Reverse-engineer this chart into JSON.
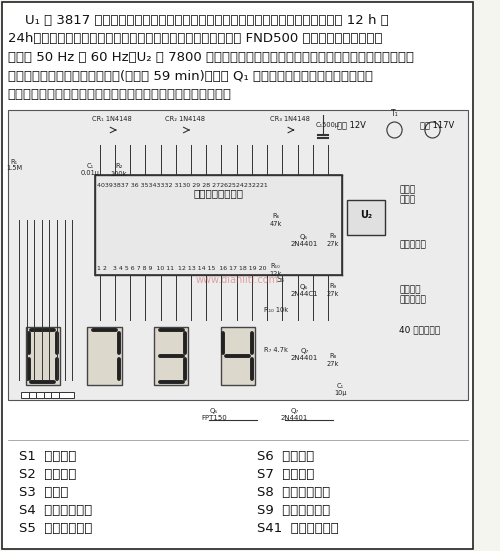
{
  "bg_color": "#f5f5f0",
  "border_color": "#222222",
  "title_text": "",
  "text_paragraph": "    U₁ 是 3817 集成电路，由仙童公司生产。它具有直接驱动显示器的能力，可以显示 12 h 或\n24h，可以按时发出闹钟声音，按时自动打开收音机。显示器是 FND500 发光二极管，输入频率\n可以是 50 Hz 或 60 Hz。U₂ 是 7800 系列稳在器，它的额定功率能满足所用收音机的要求。用户\n可以选定收音机播放的时间长短(最长为 59 min)，届时 Q₁ 会输出一个低电平，自动关採收音\n机。当闹钟比较器查出是发出闹声时，就有闹钟音调信号输出。",
  "legend_left": [
    [
      "S1",
      "快速校时"
    ],
    [
      "S2",
      "慢速校时"
    ],
    [
      "S3",
      "显示秒"
    ],
    [
      "S4",
      "显示闹钟时间"
    ],
    [
      "S5",
      "显示静寂时间"
    ]
  ],
  "legend_right": [
    [
      "S6",
      "关推门铃"
    ],
    [
      "S7",
      "闹钟暂停"
    ],
    [
      "S8",
      "时钟闹声开关"
    ],
    [
      "S9",
      "外部闹声开关"
    ],
    [
      "S41",
      "闹声音量控制"
    ]
  ],
  "circuit_img_placeholder": true,
  "watermark": "www.dianliti.com",
  "font_size_body": 9.5,
  "font_size_legend": 9.5
}
